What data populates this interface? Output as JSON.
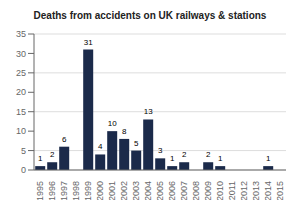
{
  "chart_data": {
    "type": "bar",
    "title": "Deaths from accidents on UK railways & stations",
    "categories": [
      "1995",
      "1996",
      "1997",
      "1998",
      "1999",
      "2000",
      "2001",
      "2002",
      "2003",
      "2004",
      "2005",
      "2006",
      "2007",
      "2008",
      "2009",
      "2010",
      "2011",
      "2012",
      "2013",
      "2014",
      "2015"
    ],
    "values": [
      1,
      2,
      6,
      0,
      31,
      4,
      10,
      8,
      5,
      13,
      3,
      1,
      2,
      0,
      2,
      1,
      0,
      0,
      0,
      1,
      0
    ],
    "color": "#1b2a4a",
    "ylim": [
      0,
      35
    ],
    "yticks": [
      0,
      5,
      10,
      15,
      20,
      25,
      30,
      35
    ],
    "grid": true,
    "data_labels": true
  }
}
